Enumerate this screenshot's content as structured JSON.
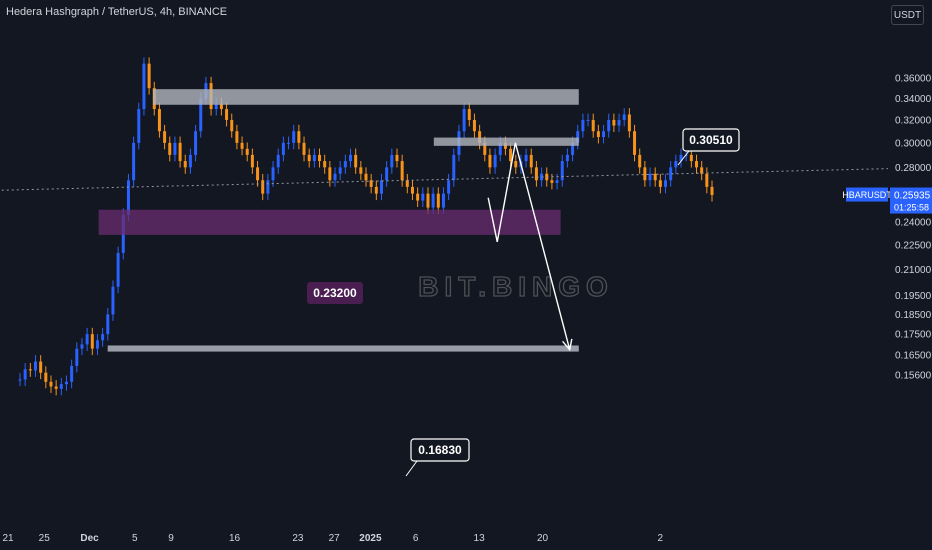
{
  "header": {
    "title": "Hedera Hashgraph / TetherUS, 4h, BINANCE",
    "currency": "USDT"
  },
  "price_tag": {
    "symbol": "HBARUSDT",
    "price": "0.25935",
    "countdown": "01:25:58"
  },
  "watermark": "BIT.BINGO",
  "colors": {
    "background": "#131722",
    "candle_up": "#2962ff",
    "candle_down": "#f7931a",
    "zone_resistance": "#b2b5be",
    "zone_support": "#6a2c70",
    "price_tag": "#2962ff",
    "arrow": "#ffffff",
    "axis_text": "#d1d4dc"
  },
  "chart_data": {
    "type": "candlestick",
    "title": "Hedera Hashgraph / TetherUS, 4h, BINANCE",
    "x_tick_labels": [
      "21",
      "25",
      "Dec",
      "5",
      "9",
      "16",
      "23",
      "27",
      "2025",
      "6",
      "13",
      "20",
      "2"
    ],
    "y_tick_labels": [
      "0.36000",
      "0.34000",
      "0.32000",
      "0.30000",
      "0.28000",
      "0.26000",
      "0.24000",
      "0.22500",
      "0.21000",
      "0.19500",
      "0.18500",
      "0.17500",
      "0.16500",
      "0.15600"
    ],
    "y_scale": "log",
    "ylim": [
      0.152,
      0.395
    ],
    "current_price": 0.25935,
    "zones": [
      {
        "name": "resistance-upper",
        "y_top": 0.349,
        "y_bottom": 0.334,
        "x_start": "Dec 7",
        "x_end": "Jan 23"
      },
      {
        "name": "resistance-lower",
        "y_top": 0.3045,
        "y_bottom": 0.2975,
        "x_start": "Jan 7",
        "x_end": "Jan 23",
        "label": "0.30510"
      },
      {
        "name": "support",
        "y_top": 0.2485,
        "y_bottom": 0.2315,
        "x_start": "Dec 1",
        "x_end": "Jan 21",
        "label": "0.23200"
      },
      {
        "name": "target",
        "y_top": 0.1695,
        "y_bottom": 0.1666,
        "x_start": "Dec 2",
        "x_end": "Jan 23",
        "label": "0.16830"
      }
    ],
    "projection_path": [
      {
        "x": "Jan 13",
        "y": 0.257
      },
      {
        "x": "Jan 14",
        "y": 0.227
      },
      {
        "x": "Jan 16",
        "y": 0.3
      },
      {
        "x": "Jan 22",
        "y": 0.1675
      }
    ],
    "trendline": {
      "style": "dotted",
      "from": {
        "x": "Nov 17",
        "y": 0.262
      },
      "to": {
        "x": "Jan 23",
        "y": 0.279
      }
    },
    "candles_close": [
      0.154,
      0.1585,
      0.158,
      0.162,
      0.157,
      0.153,
      0.151,
      0.15,
      0.152,
      0.153,
      0.16,
      0.168,
      0.17,
      0.175,
      0.168,
      0.172,
      0.175,
      0.185,
      0.2,
      0.22,
      0.245,
      0.27,
      0.3,
      0.33,
      0.375,
      0.35,
      0.33,
      0.31,
      0.3,
      0.29,
      0.3,
      0.285,
      0.28,
      0.29,
      0.31,
      0.34,
      0.355,
      0.33,
      0.335,
      0.33,
      0.32,
      0.31,
      0.3,
      0.295,
      0.29,
      0.28,
      0.27,
      0.26,
      0.27,
      0.28,
      0.29,
      0.3,
      0.3,
      0.31,
      0.3,
      0.29,
      0.285,
      0.29,
      0.285,
      0.28,
      0.27,
      0.275,
      0.28,
      0.285,
      0.29,
      0.28,
      0.275,
      0.27,
      0.265,
      0.26,
      0.27,
      0.28,
      0.29,
      0.285,
      0.27,
      0.265,
      0.26,
      0.255,
      0.26,
      0.25,
      0.26,
      0.25,
      0.26,
      0.27,
      0.29,
      0.31,
      0.33,
      0.32,
      0.31,
      0.3,
      0.29,
      0.28,
      0.29,
      0.3,
      0.295,
      0.285,
      0.28,
      0.285,
      0.29,
      0.28,
      0.27,
      0.275,
      0.27,
      0.268,
      0.27,
      0.285,
      0.29,
      0.3,
      0.31,
      0.32,
      0.32,
      0.31,
      0.305,
      0.31,
      0.32,
      0.315,
      0.32,
      0.325,
      0.31,
      0.29,
      0.28,
      0.27,
      0.275,
      0.27,
      0.265,
      0.27,
      0.28,
      0.285,
      0.29,
      0.29,
      0.285,
      0.28,
      0.275,
      0.265,
      0.259
    ]
  }
}
